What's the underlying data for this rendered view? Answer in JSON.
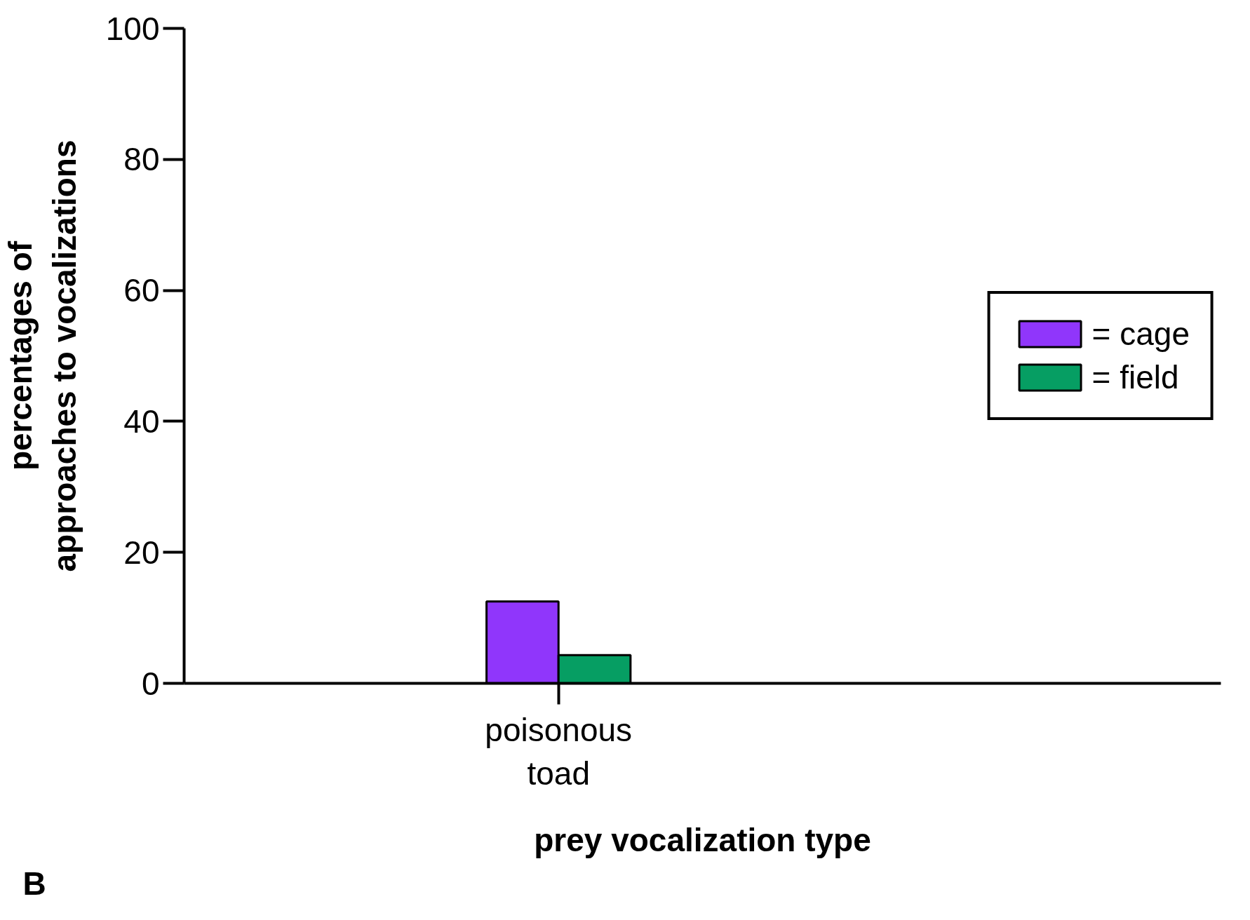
{
  "chart_data": {
    "type": "bar",
    "categories": [
      "poisonous\ntoad"
    ],
    "series": [
      {
        "name": "= cage",
        "color": "#9036fb",
        "values": [
          12.5
        ]
      },
      {
        "name": "= field",
        "color": "#069e63",
        "values": [
          4.3
        ]
      }
    ],
    "xlabel": "prey vocalization type",
    "ylabel": "percentages of\napproaches to vocalizations",
    "ylim": [
      0,
      100
    ],
    "yticks": [
      0,
      20,
      40,
      60,
      80,
      100
    ],
    "grid": false,
    "legend": "right",
    "annotations": [
      "B"
    ]
  }
}
